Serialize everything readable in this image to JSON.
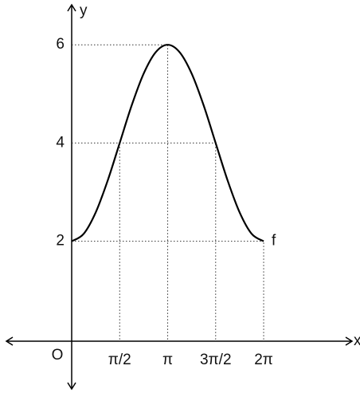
{
  "chart_data": {
    "type": "line",
    "x_label": "x",
    "y_label": "y",
    "origin_label": "O",
    "xlim": [
      -2.1,
      9.1
    ],
    "ylim": [
      -0.95,
      6.75
    ],
    "xticks": [
      {
        "value": 1.571,
        "label": "π/2"
      },
      {
        "value": 3.142,
        "label": "π"
      },
      {
        "value": 4.712,
        "label": "3π/2"
      },
      {
        "value": 6.283,
        "label": "2π"
      }
    ],
    "yticks": [
      2,
      4,
      6
    ],
    "series": [
      {
        "name": "f",
        "color": "#000000",
        "x": [
          0,
          0.393,
          0.785,
          1.178,
          1.571,
          1.963,
          2.356,
          2.749,
          3.142,
          3.534,
          3.927,
          4.32,
          4.712,
          5.105,
          5.498,
          5.89,
          6.283
        ],
        "values": [
          2,
          2.152,
          2.586,
          3.235,
          4,
          4.765,
          5.414,
          5.848,
          6,
          5.848,
          5.414,
          4.765,
          4,
          3.235,
          2.586,
          2.152,
          2
        ]
      }
    ]
  }
}
